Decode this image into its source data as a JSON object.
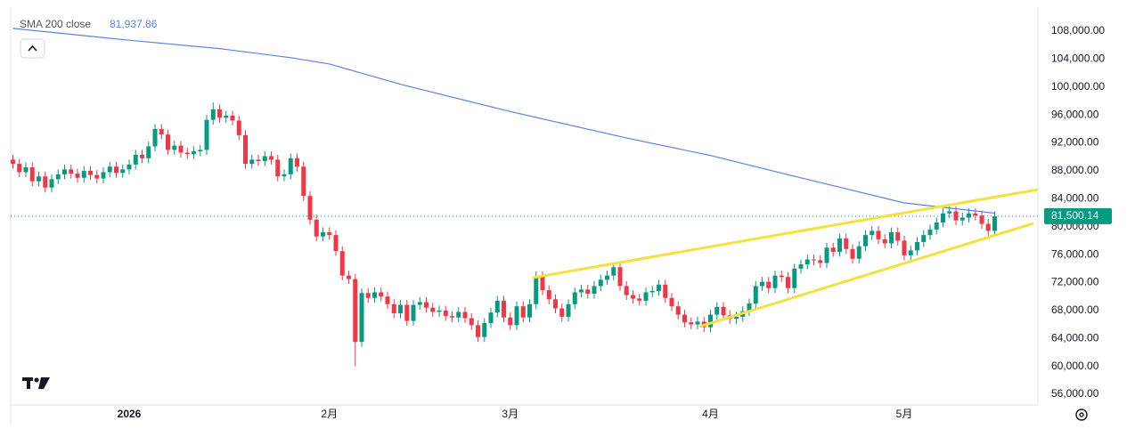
{
  "chart_data": {
    "type": "candlestick",
    "up_color": "#089981",
    "down_color": "#f23645",
    "sma": {
      "name": "SMA 200 close",
      "color": "#5b84e0",
      "last_value": 81937.86,
      "last_label": "81,937.86",
      "x": [
        0,
        18,
        32,
        43,
        49,
        60,
        77,
        95,
        108,
        122,
        138,
        152
      ],
      "values": [
        108400,
        106700,
        105500,
        104200,
        103300,
        100400,
        96500,
        92700,
        90200,
        87000,
        83400,
        81937.86
      ]
    },
    "last_price": 81500.14,
    "last_label": "81,500.14",
    "ylim": [
      54470,
      111190
    ],
    "yticks": [
      {
        "value": 56000,
        "label": "56,000.00"
      },
      {
        "value": 60000,
        "label": "60,000.00"
      },
      {
        "value": 64000,
        "label": "64,000.00"
      },
      {
        "value": 68000,
        "label": "68,000.00"
      },
      {
        "value": 72000,
        "label": "72,000.00"
      },
      {
        "value": 76000,
        "label": "76,000.00"
      },
      {
        "value": 80000,
        "label": "80,000.00"
      },
      {
        "value": 84000,
        "label": "84,000.00"
      },
      {
        "value": 88000,
        "label": "88,000.00"
      },
      {
        "value": 92000,
        "label": "92,000.00"
      },
      {
        "value": 96000,
        "label": "96,000.00"
      },
      {
        "value": 100000,
        "label": "100,000.00"
      },
      {
        "value": 104000,
        "label": "104,000.00"
      },
      {
        "value": 108000,
        "label": "108,000.00"
      }
    ],
    "grid": false,
    "categories": [
      null,
      null,
      null,
      null,
      null,
      null,
      null,
      null,
      null,
      null,
      null,
      null,
      null,
      null,
      null,
      null,
      null,
      null,
      "2026",
      null,
      null,
      null,
      null,
      null,
      null,
      null,
      null,
      null,
      null,
      null,
      null,
      null,
      null,
      null,
      null,
      null,
      null,
      null,
      null,
      null,
      null,
      null,
      null,
      null,
      null,
      null,
      null,
      null,
      null,
      "2月",
      null,
      null,
      null,
      null,
      null,
      null,
      null,
      null,
      null,
      null,
      null,
      null,
      null,
      null,
      null,
      null,
      null,
      null,
      null,
      null,
      null,
      null,
      null,
      null,
      null,
      null,
      null,
      "3月",
      null,
      null,
      null,
      null,
      null,
      null,
      null,
      null,
      null,
      null,
      null,
      null,
      null,
      null,
      null,
      null,
      null,
      null,
      null,
      null,
      null,
      null,
      null,
      null,
      null,
      null,
      null,
      null,
      null,
      null,
      "4月",
      null,
      null,
      null,
      null,
      null,
      null,
      null,
      null,
      null,
      null,
      null,
      null,
      null,
      null,
      null,
      null,
      null,
      null,
      null,
      null,
      null,
      null,
      null,
      null,
      null,
      null,
      null,
      null,
      null,
      "5月",
      null,
      null,
      null,
      null,
      null,
      null,
      null,
      null,
      null,
      null,
      null,
      null,
      null,
      null
    ],
    "candles": [
      [
        89600,
        90300,
        88300,
        89000
      ],
      [
        89000,
        89700,
        87100,
        87800
      ],
      [
        87800,
        89200,
        87100,
        88500
      ],
      [
        88500,
        89200,
        85800,
        86500
      ],
      [
        86500,
        87900,
        85800,
        87200
      ],
      [
        87200,
        87900,
        84900,
        85600
      ],
      [
        85600,
        87500,
        84900,
        86800
      ],
      [
        86800,
        88200,
        86100,
        87500
      ],
      [
        87500,
        88900,
        86800,
        88200
      ],
      [
        88200,
        88900,
        86900,
        87600
      ],
      [
        87600,
        88300,
        86300,
        87000
      ],
      [
        87000,
        88700,
        86300,
        88000
      ],
      [
        88000,
        88700,
        86700,
        87400
      ],
      [
        87400,
        88100,
        86200,
        86900
      ],
      [
        86900,
        88500,
        86200,
        87800
      ],
      [
        87800,
        89300,
        87100,
        88600
      ],
      [
        88600,
        89300,
        87000,
        87700
      ],
      [
        87700,
        88900,
        87000,
        88200
      ],
      [
        88200,
        89600,
        87500,
        88900
      ],
      [
        88900,
        91000,
        88200,
        90300
      ],
      [
        90300,
        91000,
        89100,
        89800
      ],
      [
        89800,
        92200,
        89100,
        91500
      ],
      [
        91500,
        94700,
        90800,
        94000
      ],
      [
        94000,
        94700,
        92500,
        93200
      ],
      [
        93200,
        93900,
        90300,
        91000
      ],
      [
        91000,
        92300,
        90300,
        91600
      ],
      [
        91600,
        92300,
        89900,
        90600
      ],
      [
        90600,
        91300,
        89700,
        90400
      ],
      [
        90400,
        91500,
        89700,
        90800
      ],
      [
        90800,
        91700,
        90100,
        91000
      ],
      [
        91000,
        96000,
        90300,
        95300
      ],
      [
        95300,
        97800,
        94600,
        96800
      ],
      [
        96800,
        97500,
        94900,
        95600
      ],
      [
        95600,
        96600,
        94900,
        95900
      ],
      [
        95900,
        96600,
        94500,
        95200
      ],
      [
        95200,
        95900,
        92400,
        93100
      ],
      [
        93100,
        93800,
        88300,
        89000
      ],
      [
        89000,
        90300,
        88300,
        89600
      ],
      [
        89600,
        90300,
        88700,
        89400
      ],
      [
        89400,
        90800,
        88700,
        90100
      ],
      [
        90100,
        90800,
        88900,
        89600
      ],
      [
        89600,
        90300,
        86500,
        87200
      ],
      [
        87200,
        88200,
        86500,
        87500
      ],
      [
        87500,
        90500,
        86800,
        89800
      ],
      [
        89800,
        90500,
        87900,
        88600
      ],
      [
        88600,
        89300,
        83700,
        84400
      ],
      [
        84400,
        85100,
        80300,
        81000
      ],
      [
        81000,
        81700,
        77900,
        78600
      ],
      [
        78600,
        79900,
        77900,
        79200
      ],
      [
        79200,
        79900,
        78100,
        78800
      ],
      [
        78800,
        79500,
        75800,
        76500
      ],
      [
        76500,
        77200,
        72300,
        73000
      ],
      [
        73000,
        73700,
        71800,
        72500
      ],
      [
        72500,
        73200,
        60000,
        63500
      ],
      [
        63500,
        71200,
        62800,
        70500
      ],
      [
        70500,
        71200,
        69100,
        69800
      ],
      [
        69800,
        71300,
        69100,
        70600
      ],
      [
        70600,
        71300,
        69300,
        70000
      ],
      [
        70000,
        70700,
        68200,
        68900
      ],
      [
        68900,
        69600,
        66900,
        67600
      ],
      [
        67600,
        69500,
        66900,
        68800
      ],
      [
        68800,
        69500,
        65800,
        66500
      ],
      [
        66500,
        69500,
        65800,
        68800
      ],
      [
        68800,
        69900,
        68100,
        69200
      ],
      [
        69200,
        69900,
        67700,
        68400
      ],
      [
        68400,
        69100,
        67100,
        67800
      ],
      [
        67800,
        68700,
        67100,
        68000
      ],
      [
        68000,
        68700,
        66500,
        67200
      ],
      [
        67200,
        67900,
        66300,
        67000
      ],
      [
        67000,
        68500,
        66300,
        67800
      ],
      [
        67800,
        68500,
        66200,
        66900
      ],
      [
        66900,
        67600,
        65200,
        65900
      ],
      [
        65900,
        66600,
        63500,
        64200
      ],
      [
        64200,
        66900,
        63500,
        66200
      ],
      [
        66200,
        68400,
        65500,
        67700
      ],
      [
        67700,
        70100,
        67000,
        69400
      ],
      [
        69400,
        70100,
        66300,
        67000
      ],
      [
        67000,
        67700,
        65200,
        65900
      ],
      [
        65900,
        69300,
        65200,
        68600
      ],
      [
        68600,
        69300,
        66300,
        67000
      ],
      [
        67000,
        69600,
        66300,
        68900
      ],
      [
        68900,
        73600,
        68200,
        72900
      ],
      [
        72900,
        73600,
        70200,
        70900
      ],
      [
        70900,
        71600,
        68900,
        69600
      ],
      [
        69600,
        70300,
        67600,
        68300
      ],
      [
        68300,
        69000,
        66400,
        67100
      ],
      [
        67100,
        69600,
        66400,
        68900
      ],
      [
        68900,
        71300,
        68200,
        70600
      ],
      [
        70600,
        71700,
        69900,
        71000
      ],
      [
        71000,
        71700,
        69700,
        70400
      ],
      [
        70400,
        72200,
        69700,
        71500
      ],
      [
        71500,
        73100,
        70800,
        72400
      ],
      [
        72400,
        73700,
        71700,
        73000
      ],
      [
        73000,
        74900,
        72300,
        74200
      ],
      [
        74200,
        74900,
        70800,
        71500
      ],
      [
        71500,
        72200,
        69500,
        70200
      ],
      [
        70200,
        70900,
        69000,
        69700
      ],
      [
        69700,
        70400,
        68700,
        69400
      ],
      [
        69400,
        71300,
        68700,
        70600
      ],
      [
        70600,
        71500,
        69900,
        70800
      ],
      [
        70800,
        72400,
        70100,
        71700
      ],
      [
        71700,
        72400,
        69100,
        69800
      ],
      [
        69800,
        70500,
        67900,
        68600
      ],
      [
        68600,
        69300,
        66700,
        67400
      ],
      [
        67400,
        68100,
        65600,
        66300
      ],
      [
        66300,
        67000,
        65300,
        66000
      ],
      [
        66000,
        67100,
        65300,
        66400
      ],
      [
        66400,
        67100,
        64900,
        65600
      ],
      [
        65600,
        68100,
        64900,
        67400
      ],
      [
        67400,
        69200,
        66700,
        68500
      ],
      [
        68500,
        69200,
        66600,
        67300
      ],
      [
        67300,
        68000,
        66100,
        66800
      ],
      [
        66800,
        67800,
        66100,
        67100
      ],
      [
        67100,
        68600,
        66400,
        67900
      ],
      [
        67900,
        69700,
        67200,
        69000
      ],
      [
        69000,
        72200,
        68300,
        71500
      ],
      [
        71500,
        72800,
        70800,
        72100
      ],
      [
        72100,
        72800,
        70500,
        71200
      ],
      [
        71200,
        73700,
        70500,
        73000
      ],
      [
        73000,
        73700,
        72100,
        72800
      ],
      [
        72800,
        73500,
        70500,
        71200
      ],
      [
        71200,
        74700,
        70500,
        74000
      ],
      [
        74000,
        75300,
        73300,
        74600
      ],
      [
        74600,
        76000,
        73900,
        75300
      ],
      [
        75300,
        76000,
        74500,
        75200
      ],
      [
        75200,
        75900,
        74100,
        74800
      ],
      [
        74800,
        77700,
        74100,
        77000
      ],
      [
        77000,
        77700,
        75700,
        76400
      ],
      [
        76400,
        79000,
        75700,
        78300
      ],
      [
        78300,
        79000,
        76100,
        76800
      ],
      [
        76800,
        77500,
        74700,
        75400
      ],
      [
        75400,
        77900,
        74700,
        77200
      ],
      [
        77200,
        79500,
        76500,
        78800
      ],
      [
        78800,
        80100,
        78100,
        79400
      ],
      [
        79400,
        80100,
        77500,
        78200
      ],
      [
        78200,
        78900,
        76900,
        77600
      ],
      [
        77600,
        79900,
        76900,
        79200
      ],
      [
        79200,
        79900,
        77300,
        78000
      ],
      [
        78000,
        78700,
        75200,
        75900
      ],
      [
        75900,
        77300,
        75200,
        76600
      ],
      [
        76600,
        78500,
        75900,
        77800
      ],
      [
        77800,
        79500,
        77100,
        78800
      ],
      [
        78800,
        80300,
        78100,
        79600
      ],
      [
        79600,
        81300,
        78900,
        80600
      ],
      [
        80600,
        82600,
        79900,
        81900
      ],
      [
        81900,
        82900,
        81200,
        82200
      ],
      [
        82200,
        82900,
        80200,
        80900
      ],
      [
        80900,
        82000,
        80200,
        81300
      ],
      [
        81300,
        82600,
        80600,
        81900
      ],
      [
        81900,
        82600,
        80900,
        81600
      ],
      [
        81600,
        82300,
        79700,
        80400
      ],
      [
        80400,
        81100,
        78700,
        79400
      ],
      [
        79400,
        82200,
        78700,
        81500.14
      ]
    ]
  }
}
